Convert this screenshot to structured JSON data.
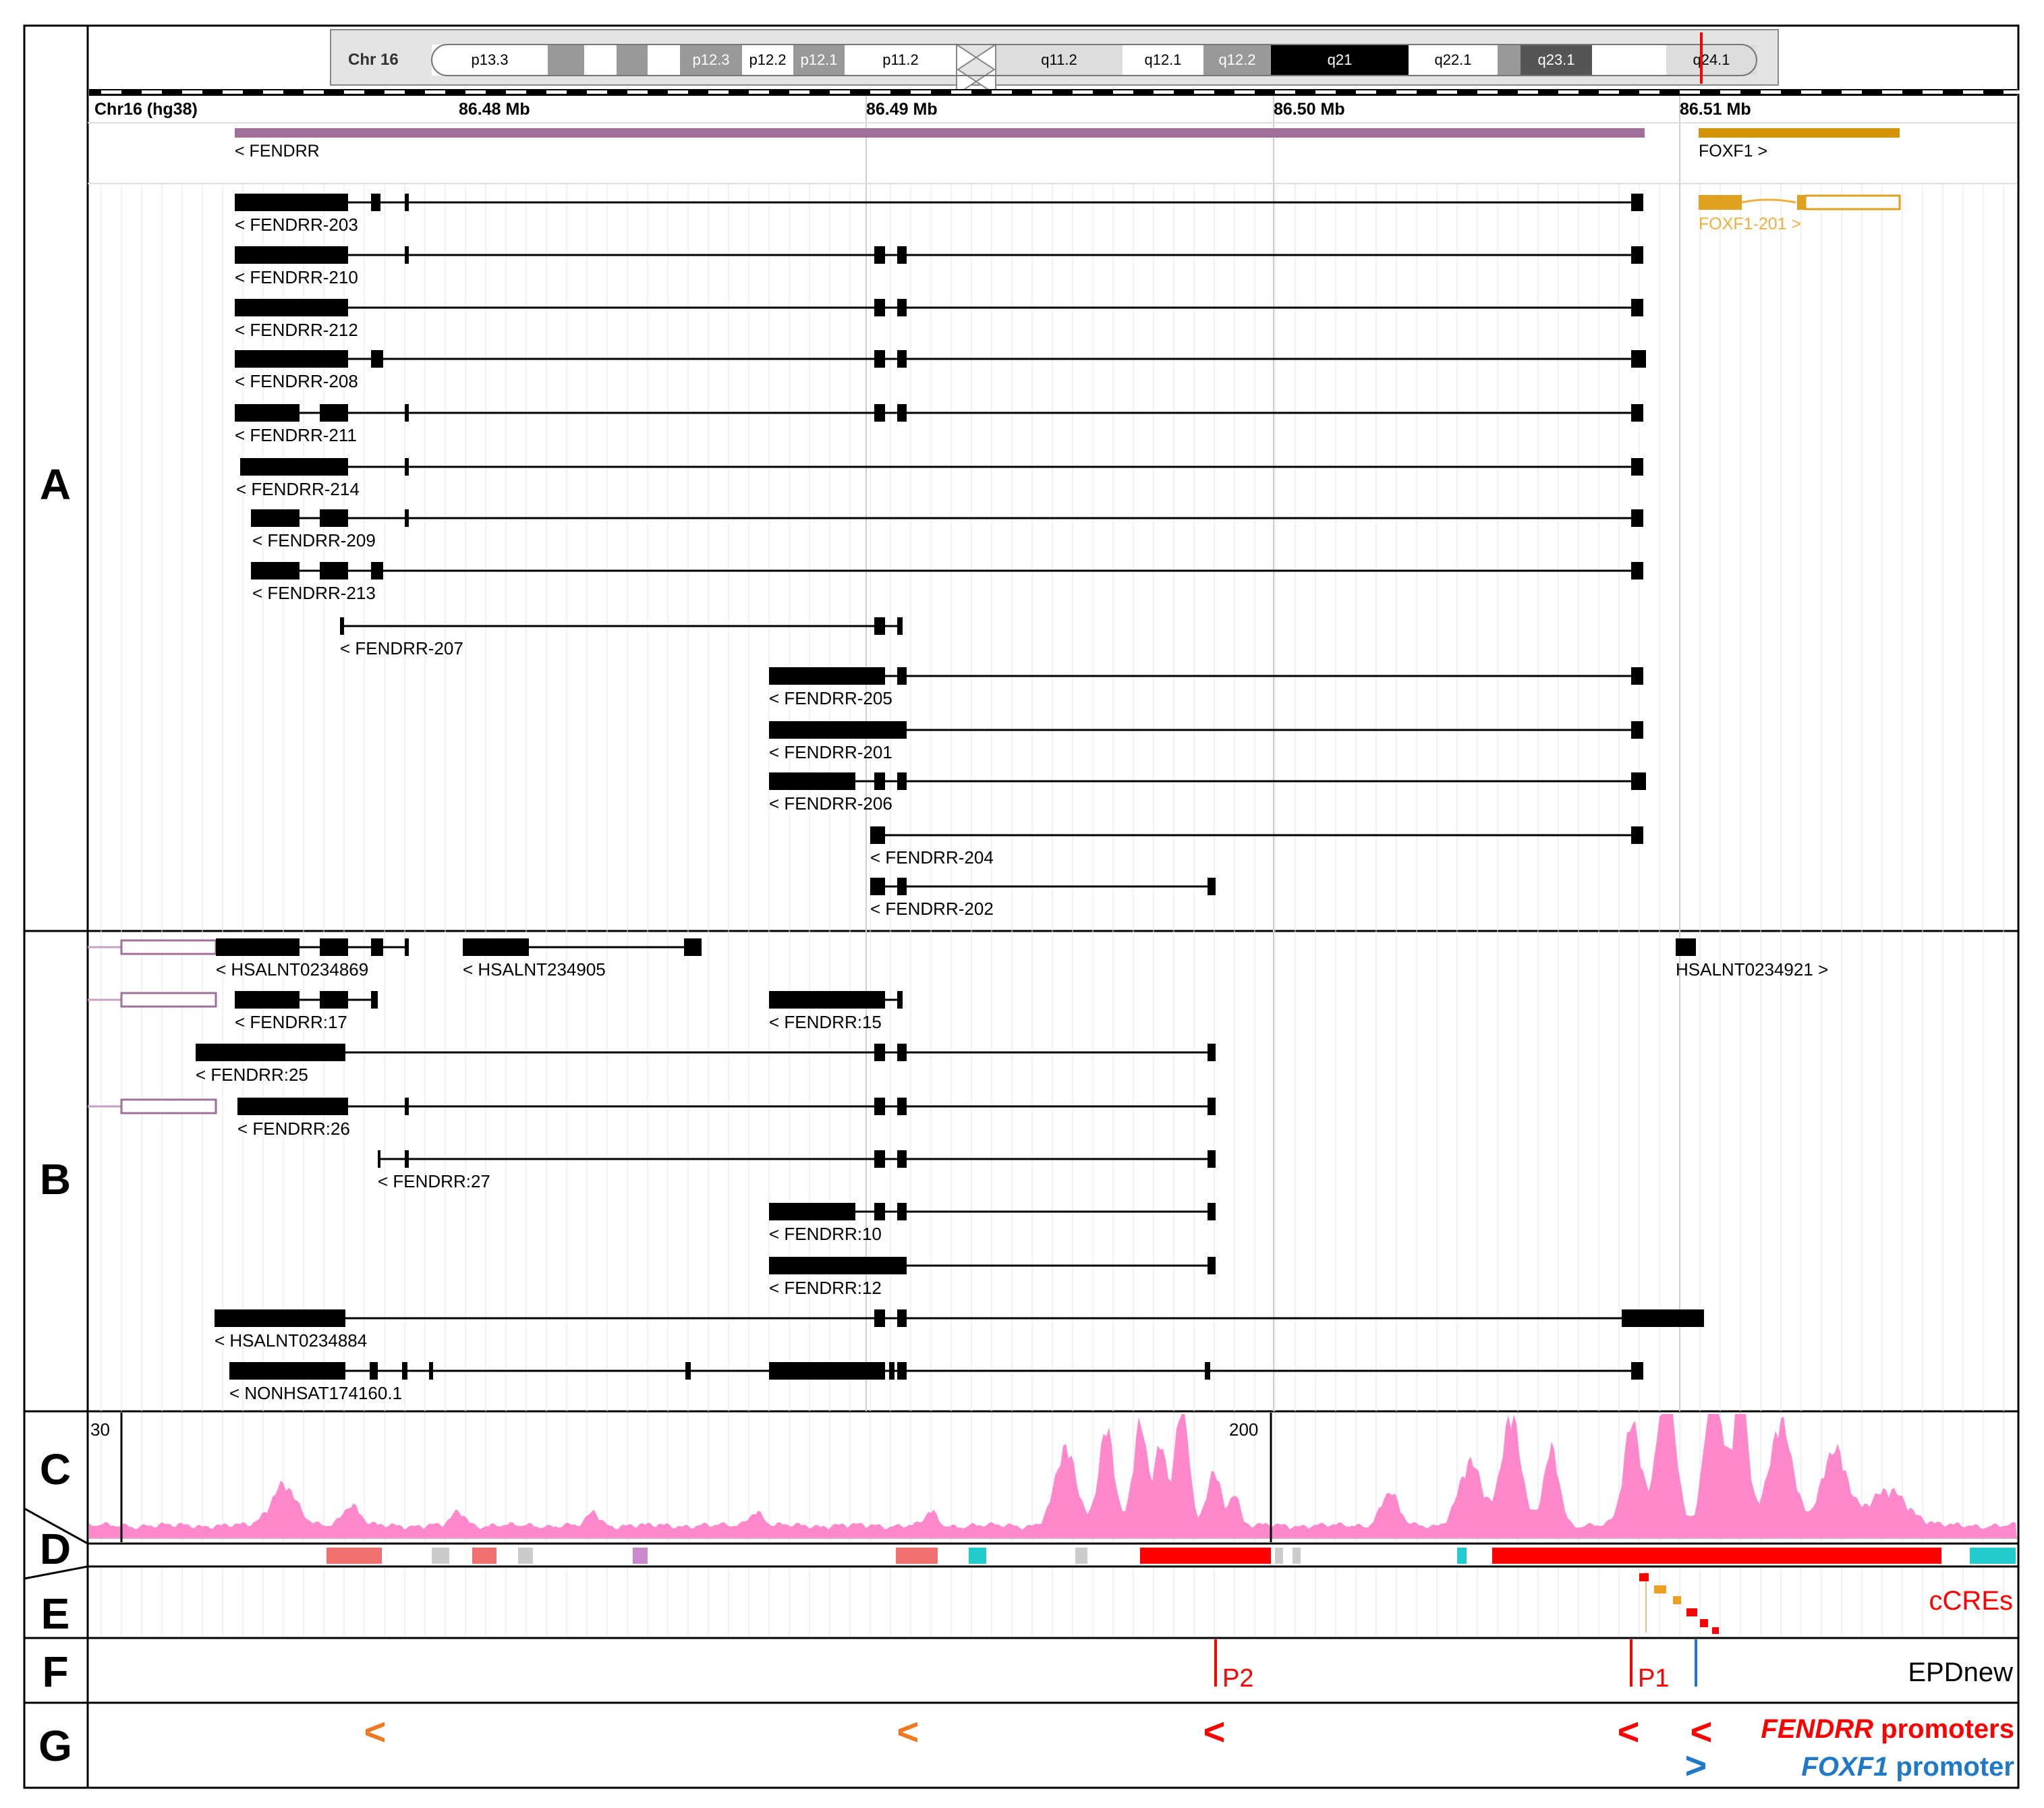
{
  "panels": [
    "A",
    "B",
    "C",
    "D",
    "E",
    "F",
    "G"
  ],
  "ideogram": {
    "chrom_label": "Chr 16",
    "bands": [
      {
        "label": "p13.3",
        "fill": "#ffffff",
        "text": "#000000"
      },
      {
        "label": "",
        "fill": "#999999",
        "text": "#000000"
      },
      {
        "label": "",
        "fill": "#ffffff",
        "text": "#000000"
      },
      {
        "label": "",
        "fill": "#999999",
        "text": "#000000"
      },
      {
        "label": "",
        "fill": "#ffffff",
        "text": "#000000"
      },
      {
        "label": "p12.3",
        "fill": "#999999",
        "text": "#ffffff"
      },
      {
        "label": "p12.2",
        "fill": "#ffffff",
        "text": "#000000"
      },
      {
        "label": "p12.1",
        "fill": "#999999",
        "text": "#ffffff"
      },
      {
        "label": "p11.2",
        "fill": "#ffffff",
        "text": "#000000"
      },
      {
        "label": "q11.2",
        "fill": "#dddddd",
        "text": "#000000"
      },
      {
        "label": "q12.1",
        "fill": "#ffffff",
        "text": "#000000"
      },
      {
        "label": "q12.2",
        "fill": "#999999",
        "text": "#ffffff"
      },
      {
        "label": "q21",
        "fill": "#000000",
        "text": "#ffffff"
      },
      {
        "label": "q22.1",
        "fill": "#ffffff",
        "text": "#000000"
      },
      {
        "label": "",
        "fill": "#999999",
        "text": "#000000"
      },
      {
        "label": "q23.1",
        "fill": "#555555",
        "text": "#ffffff"
      },
      {
        "label": "",
        "fill": "#ffffff",
        "text": "#000000"
      },
      {
        "label": "q24.1",
        "fill": "#dddddd",
        "text": "#000000"
      }
    ],
    "marker_color": "#ff0000"
  },
  "axis": {
    "assembly_label": "Chr16 (hg38)",
    "ticks": [
      "86.48 Mb",
      "86.49 Mb",
      "86.50 Mb",
      "86.51 Mb"
    ]
  },
  "genes": [
    {
      "label": "< FENDRR",
      "color": "#a0709a"
    },
    {
      "label": "FOXF1 >",
      "color": "#d4940a"
    }
  ],
  "panel_a_transcripts": [
    "< FENDRR-203",
    "< FENDRR-210",
    "< FENDRR-212",
    "< FENDRR-208",
    "< FENDRR-211",
    "< FENDRR-214",
    "< FENDRR-209",
    "< FENDRR-213",
    "< FENDRR-207",
    "< FENDRR-205",
    "< FENDRR-201",
    "< FENDRR-206",
    "< FENDRR-204",
    "< FENDRR-202"
  ],
  "foxf1_transcript": {
    "label": "FOXF1-201 >",
    "color": "#f0b040"
  },
  "panel_b_transcripts": [
    "< HSALNT0234869",
    "< HSALNT234905",
    "HSALNT0234921 >",
    "< FENDRR:17",
    "< FENDRR:15",
    "< FENDRR:25",
    "< FENDRR:26",
    "< FENDRR:27",
    "< FENDRR:10",
    "< FENDRR:12",
    "< HSALNT0234884",
    "< NONHSAT174160.1"
  ],
  "signal_track": {
    "scale_left": "30",
    "scale_right": "200",
    "color": "#ff88cc"
  },
  "regions_track": {
    "colors": {
      "red": "#ff0000",
      "salmon": "#f07070",
      "gray": "#cccccc",
      "violet": "#cc88cc",
      "cyan": "#22cccc"
    }
  },
  "ccre": {
    "label": "cCREs",
    "color": "#ff0000"
  },
  "epdnew": {
    "label": "EPDnew",
    "p2": "P2",
    "p1": "P1",
    "red": "#ff0000",
    "blue": "#1f78c8"
  },
  "promoters": {
    "fendrr_gene": "FENDRR",
    "fendrr_suffix": " promoters",
    "foxf1_gene": "FOXF1",
    "foxf1_suffix": " promoter",
    "left_glyph": "<",
    "right_glyph": ">",
    "orange": "#f07820",
    "red": "#ff0000",
    "blue": "#1f78c8"
  }
}
